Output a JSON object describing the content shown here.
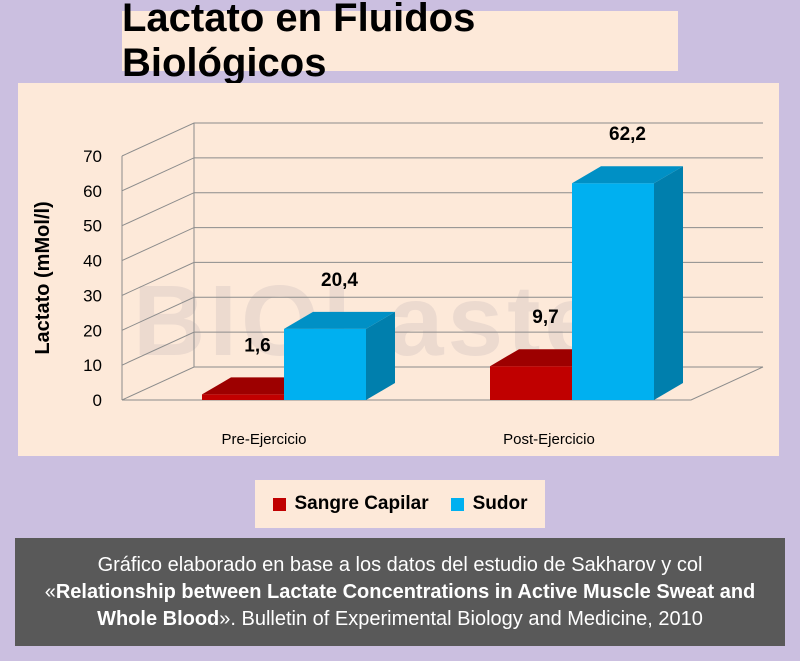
{
  "title": "Lactato en Fluidos Biológicos",
  "watermark": "BIOLaster",
  "chart_data": {
    "type": "bar",
    "categories": [
      "Pre-Ejercicio",
      "Post-Ejercicio"
    ],
    "series": [
      {
        "name": "Sangre Capilar",
        "values": [
          1.6,
          9.7
        ],
        "labels": [
          "1,6",
          "9,7"
        ],
        "color": "#c00000"
      },
      {
        "name": "Sudor",
        "values": [
          20.4,
          62.2
        ],
        "labels": [
          "20,4",
          "62,2"
        ],
        "color": "#00b0f0"
      }
    ],
    "ylabel": "Lactato (mMol/l)",
    "xlabel": "",
    "ylim": [
      0,
      70
    ],
    "yticks": [
      "0",
      "10",
      "20",
      "30",
      "40",
      "50",
      "60",
      "70"
    ],
    "grid": true,
    "legend": "bottom"
  },
  "legend": {
    "items": [
      {
        "label": "Sangre Capilar",
        "color": "#c00000"
      },
      {
        "label": "Sudor",
        "color": "#00b0f0"
      }
    ]
  },
  "caption": {
    "line1": "Gráfico elaborado en base a los datos del estudio de Sakharov y col",
    "bold_title": "Relationship between Lactate Concentrations in Active Muscle Sweat and Whole Blood",
    "open_quote": "«",
    "close_quote": "»",
    "citation": ". Bulletin of Experimental Biology and Medicine, 2010"
  }
}
